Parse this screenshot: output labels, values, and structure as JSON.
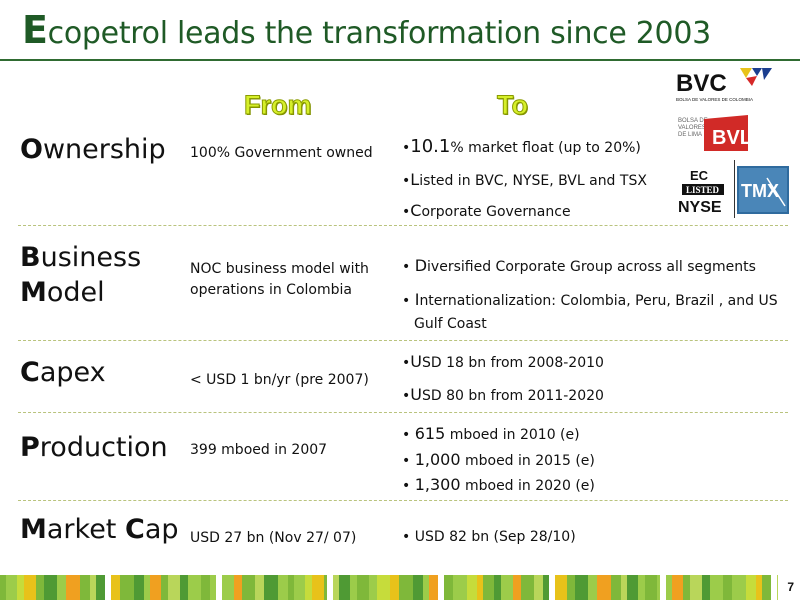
{
  "slide": {
    "title_cap": "E",
    "title_rest": "copetrol leads the transformation since 2003",
    "page_number": "7"
  },
  "columns": {
    "from": "From",
    "to": "To"
  },
  "rows": {
    "ownership": {
      "label_cap": "O",
      "label_rest": "wnership",
      "from": "100% Government owned",
      "to": [
        {
          "lead": "10.1",
          "rest": "% market float  (up to 20%)"
        },
        {
          "lead": "L",
          "rest": "isted in BVC, NYSE, BVL and TSX"
        },
        {
          "lead": "C",
          "rest": "orporate Governance"
        }
      ]
    },
    "business": {
      "label_cap1": "B",
      "label_rest1": "usiness",
      "label_cap2": "M",
      "label_rest2": "odel",
      "from_line1": "NOC business model with",
      "from_line2": "operations in Colombia",
      "to": [
        {
          "lead": "D",
          "rest": "iversified Corporate Group across all segments"
        },
        {
          "lead": "I",
          "rest": "nternationalization: Colombia, Peru, Brazil , and US"
        },
        {
          "cont": "Gulf Coast"
        }
      ]
    },
    "capex": {
      "label_cap": "C",
      "label_rest": "apex",
      "from": "< USD 1 bn/yr (pre 2007)",
      "to": [
        {
          "lead": "U",
          "rest": "SD 18 bn from 2008-2010"
        },
        {
          "lead": "U",
          "rest": "SD 80 bn from 2011-2020"
        }
      ]
    },
    "production": {
      "label_cap": "P",
      "label_rest": "roduction",
      "from": "399 mboed in 2007",
      "to": [
        {
          "lead": "615",
          "rest": " mboed in 2010 (e)"
        },
        {
          "lead": "1,000",
          "rest": " mboed in 2015 (e)"
        },
        {
          "lead": "1,300",
          "rest": " mboed in 2020 (e)"
        }
      ]
    },
    "marketcap": {
      "label_cap1": "M",
      "label_rest1": "arket ",
      "label_cap2": "C",
      "label_rest2": "ap",
      "from": "USD 27 bn (Nov 27/ 07)",
      "to": [
        {
          "rest": "USD 82 bn (Sep 28/10)"
        }
      ]
    }
  },
  "logos": {
    "bvc": {
      "name": "BVC",
      "sub": "BOLSA DE VALORES DE COLOMBIA"
    },
    "bvl": {
      "name": "BVL",
      "sub1": "BOLSA DE",
      "sub2": "VALORES",
      "sub3": "DE LIMA"
    },
    "nyse": {
      "line1": "EC",
      "line2": "LISTED",
      "line3": "NYSE"
    },
    "tmx": {
      "name": "TMX"
    }
  },
  "colors": {
    "title_green": "#1f5a26",
    "header_lime": "#d6ef2a",
    "bvl_red": "#d12a27",
    "tmx_blue": "#2f6b9e"
  }
}
